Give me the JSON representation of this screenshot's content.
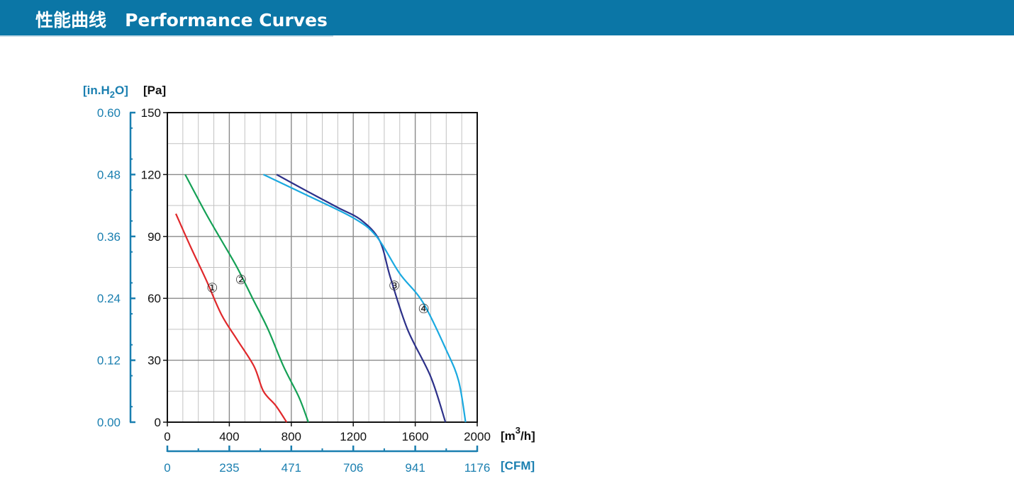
{
  "header": {
    "title": "性能曲线   Performance Curves"
  },
  "colors": {
    "header_bg": "#0b76a6",
    "secondary_axis": "#1a7fb0",
    "grid": "#b0b0b0"
  },
  "chart_data": {
    "type": "line",
    "x_primary": {
      "unit": "[m³/h]",
      "unit_base": "[m",
      "unit_sup": "3",
      "unit_tail": "/h]",
      "range": [
        0,
        2000
      ],
      "ticks": [
        0,
        400,
        800,
        1200,
        1600,
        2000
      ],
      "tick_labels": [
        "0",
        "400",
        "800",
        "1200",
        "1600",
        "2000"
      ]
    },
    "x_secondary": {
      "unit": "[CFM]",
      "tick_labels": [
        "0",
        "235",
        "471",
        "706",
        "941",
        "1176"
      ]
    },
    "y_primary": {
      "unit": "[Pa]",
      "range": [
        0,
        150
      ],
      "ticks": [
        0,
        30,
        60,
        90,
        120,
        150
      ],
      "tick_labels": [
        "0",
        "30",
        "60",
        "90",
        "120",
        "150"
      ]
    },
    "y_secondary": {
      "unit": "[in.H₂O]",
      "unit_base": "[in.H",
      "unit_sub": "2",
      "unit_tail": "O]",
      "tick_labels": [
        "0.00",
        "0.12",
        "0.24",
        "0.36",
        "0.48",
        "0.60"
      ]
    },
    "grid": true,
    "series": [
      {
        "label": "①",
        "color": "#e0282b",
        "label_at": [
          290,
          65
        ],
        "points": [
          [
            55,
            101
          ],
          [
            150,
            85
          ],
          [
            250,
            69
          ],
          [
            350,
            52
          ],
          [
            450,
            40
          ],
          [
            560,
            27
          ],
          [
            620,
            15
          ],
          [
            700,
            8
          ],
          [
            770,
            0
          ]
        ]
      },
      {
        "label": "②",
        "color": "#14a055",
        "label_at": [
          475,
          69
        ],
        "points": [
          [
            115,
            120
          ],
          [
            250,
            101
          ],
          [
            350,
            88
          ],
          [
            450,
            75
          ],
          [
            550,
            60
          ],
          [
            650,
            45
          ],
          [
            750,
            27
          ],
          [
            850,
            12
          ],
          [
            910,
            0
          ]
        ]
      },
      {
        "label": "③",
        "color": "#2c3089",
        "label_at": [
          1465,
          66
        ],
        "points": [
          [
            705,
            120
          ],
          [
            900,
            112
          ],
          [
            1100,
            104
          ],
          [
            1250,
            98
          ],
          [
            1370,
            88
          ],
          [
            1440,
            70
          ],
          [
            1550,
            45
          ],
          [
            1700,
            22
          ],
          [
            1795,
            0
          ]
        ]
      },
      {
        "label": "④",
        "color": "#1aa9e0",
        "label_at": [
          1655,
          55
        ],
        "points": [
          [
            620,
            120
          ],
          [
            900,
            110
          ],
          [
            1200,
            99
          ],
          [
            1350,
            90
          ],
          [
            1500,
            72
          ],
          [
            1650,
            58
          ],
          [
            1800,
            35
          ],
          [
            1880,
            20
          ],
          [
            1925,
            0
          ]
        ]
      }
    ]
  }
}
